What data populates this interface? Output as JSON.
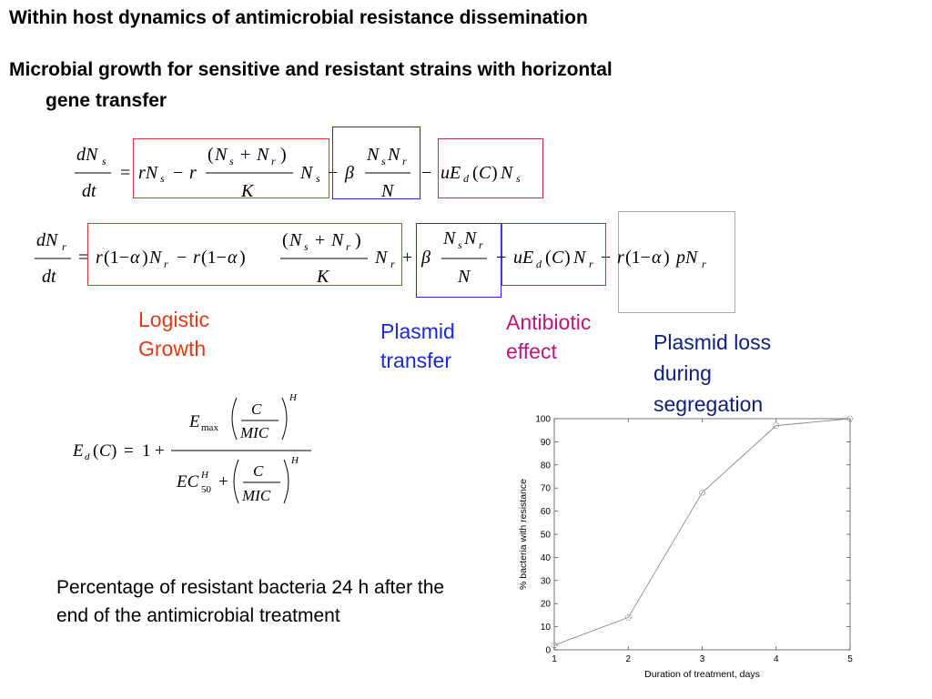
{
  "title": "Within host dynamics of antimicrobial resistance dissemination",
  "subtitle_line1": "Microbial growth for sensitive and resistant strains with horizontal",
  "subtitle_line2": "gene transfer",
  "labels": {
    "logistic_1": "Logistic",
    "logistic_2": "Growth",
    "plasmid_1": "Plasmid",
    "plasmid_2": "transfer",
    "antibiotic_1": "Antibiotic",
    "antibiotic_2": "effect",
    "loss_1": "Plasmid loss",
    "loss_2": "during",
    "loss_3": "segregation"
  },
  "note": "Percentage of resistant bacteria 24 h after the end of the antimicrobial treatment",
  "colors": {
    "logistic": "#e03a12",
    "plasmid": "#1c2bd0",
    "antibiotic": "#c0157a",
    "loss": "#10207a"
  },
  "chart_data": {
    "type": "line",
    "x": [
      1,
      2,
      3,
      4,
      5
    ],
    "values": [
      2,
      14,
      68,
      97,
      100
    ],
    "xlabel": "Duration of treatment, days",
    "ylabel": "% bacteria with resistance",
    "xlim": [
      1,
      5
    ],
    "ylim": [
      0,
      100
    ],
    "xticks": [
      "1",
      "2",
      "3",
      "4",
      "5"
    ],
    "yticks": [
      "0",
      "10",
      "20",
      "30",
      "40",
      "50",
      "60",
      "70",
      "80",
      "90",
      "100"
    ],
    "grid": false
  }
}
